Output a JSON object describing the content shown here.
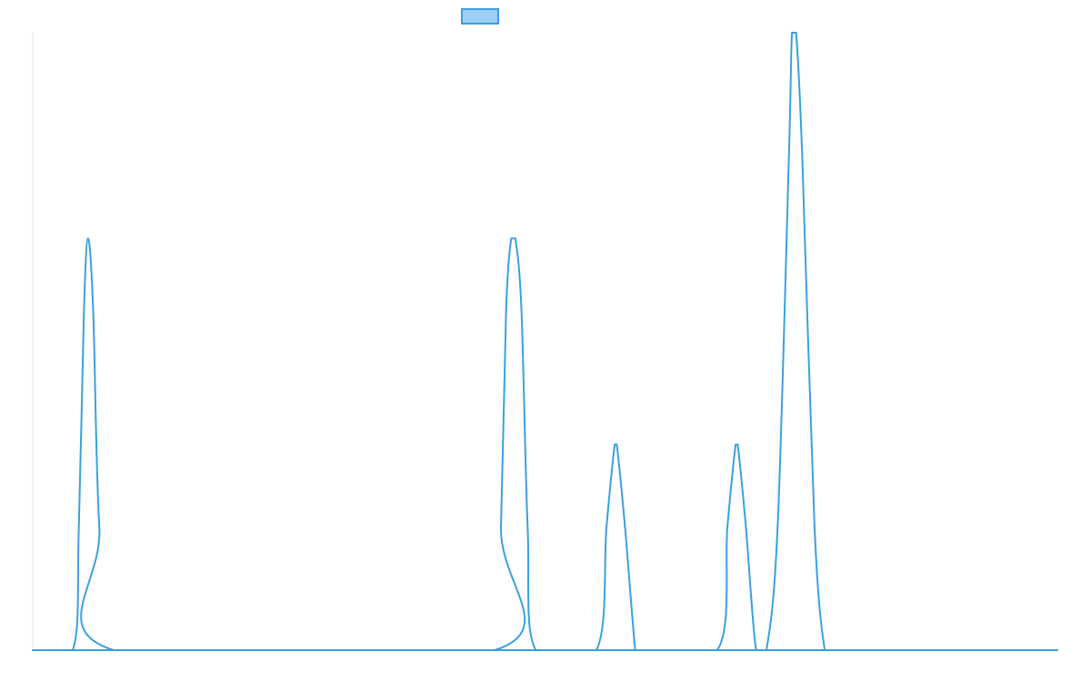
{
  "chart_data": {
    "type": "line",
    "title": "",
    "xlabel": "",
    "ylabel": "",
    "xlim": [
      0,
      100
    ],
    "ylim": [
      0,
      1
    ],
    "grid": false,
    "legend_position": "top-center",
    "series": [
      {
        "name": "",
        "color": "#3aa0e0",
        "fill_color": "#9ccff3",
        "x": [
          0,
          3.9,
          4.5,
          5.0,
          5.4,
          5.9,
          6.5,
          7.9,
          45.1,
          45.7,
          46.2,
          46.7,
          47.1,
          47.7,
          48.3,
          49.1,
          55.0,
          56.0,
          56.8,
          57.0,
          57.8,
          58.8,
          59.1,
          66.8,
          67.8,
          68.6,
          68.8,
          69.6,
          70.6,
          71.6,
          72.7,
          73.8,
          74.1,
          74.5,
          75.1,
          76.3,
          77.3,
          78.1,
          100
        ],
        "y": [
          0,
          0,
          0.2,
          0.55,
          0.667,
          0.55,
          0.2,
          0,
          0,
          0.2,
          0.55,
          0.667,
          0.667,
          0.55,
          0.2,
          0,
          0,
          0.2,
          0.333,
          0.333,
          0.2,
          0,
          0,
          0,
          0.2,
          0.333,
          0.333,
          0.2,
          0,
          0.0,
          0.2,
          0.8,
          1.0,
          1.0,
          0.8,
          0.2,
          0.0,
          0,
          0
        ]
      }
    ]
  }
}
